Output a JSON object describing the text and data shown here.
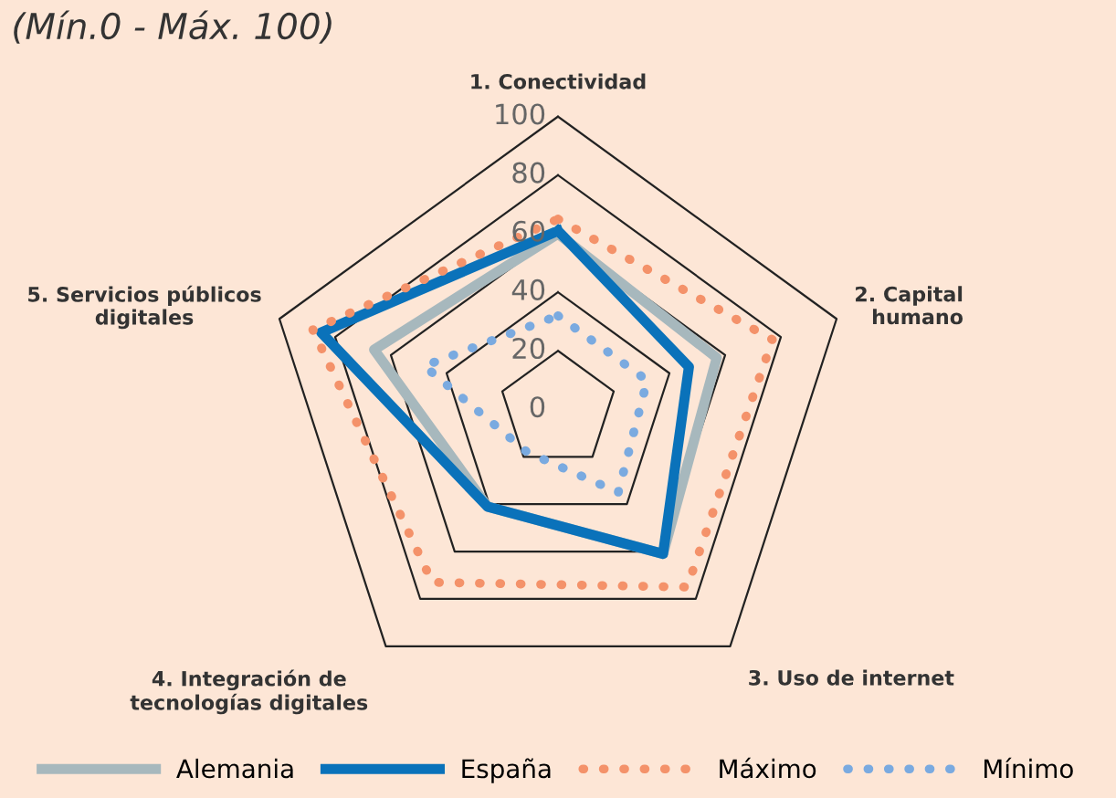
{
  "chart_data": {
    "type": "radar",
    "title": "(Mín.0 - Máx. 100)",
    "categories": [
      "1. Conectividad",
      "2. Capital\nhumano",
      "3. Uso de internet",
      "4. Integración de\ntecnologías digitales",
      "5. Servicios públicos\ndigitales"
    ],
    "series": [
      {
        "name": "Alemania",
        "color": "#a7b8bd",
        "values": [
          60,
          57,
          61,
          41,
          66
        ],
        "line_style": "solid"
      },
      {
        "name": "España",
        "color": "#0a72ba",
        "values": [
          61,
          47,
          61,
          41,
          85
        ],
        "line_style": "solid"
      },
      {
        "name": "Máximo",
        "color": "#f4926a",
        "values": [
          65,
          77,
          75,
          73,
          88
        ],
        "line_style": "dotted"
      },
      {
        "name": "Mínimo",
        "color": "#7aaae0",
        "values": [
          32,
          32,
          35,
          18,
          48
        ],
        "line_style": "dotted"
      }
    ],
    "ylim": [
      0,
      100
    ],
    "yticks": [
      0,
      20,
      40,
      60,
      80,
      100
    ],
    "grid": true,
    "legend": "bottom",
    "marker": "none"
  }
}
